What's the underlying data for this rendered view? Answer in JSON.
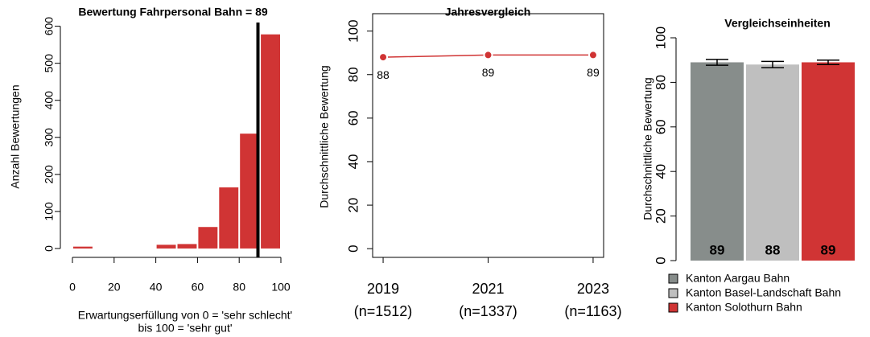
{
  "chart_data": [
    {
      "type": "histogram",
      "title": "Bewertung Fahrpersonal Bahn = 89",
      "ylabel": "Anzahl Bewertungen",
      "xlabel": [
        "Erwartungserfüllung von 0 = 'sehr schlecht'",
        "bis 100 = 'sehr gut'"
      ],
      "bins": [
        0,
        10,
        20,
        30,
        40,
        50,
        60,
        70,
        80,
        90,
        100
      ],
      "counts": [
        5,
        0,
        0,
        0,
        10,
        12,
        58,
        165,
        310,
        578
      ],
      "color": "#d03434",
      "vline": 89,
      "xlim": [
        0,
        100
      ],
      "ylim": [
        -24,
        610
      ],
      "xticks": [
        0,
        20,
        40,
        60,
        80,
        100
      ],
      "yticks": [
        0,
        100,
        200,
        300,
        400,
        500,
        600
      ]
    },
    {
      "type": "line",
      "title": "Jahresvergleich",
      "ylabel": "Durchschnittliche Bewertung",
      "x": [
        2019,
        2021,
        2023
      ],
      "sample_sizes": [
        "(n=1512)",
        "(n=1337)",
        "(n=1163)"
      ],
      "values": [
        88,
        89,
        89
      ],
      "color": "#d03434",
      "xlim": [
        2018.8,
        2023.2
      ],
      "ylim": [
        -4,
        108
      ],
      "xticks": [
        2019,
        2021,
        2023
      ],
      "yticks": [
        0,
        20,
        40,
        60,
        80,
        100
      ]
    },
    {
      "type": "bar",
      "title": "Vergleichseinheiten",
      "ylabel": "Durchschnittliche Bewertung",
      "categories": [
        "Kanton Aargau Bahn",
        "Kanton Basel-Landschaft Bahn",
        "Kanton Solothurn Bahn"
      ],
      "values": [
        89,
        88,
        89
      ],
      "errors": [
        1.3,
        1.4,
        1.0
      ],
      "colors": [
        "#878d8b",
        "#bfbfbf",
        "#d03434"
      ],
      "ylim": [
        0,
        100
      ],
      "yticks": [
        0,
        20,
        40,
        60,
        80,
        100
      ]
    }
  ]
}
